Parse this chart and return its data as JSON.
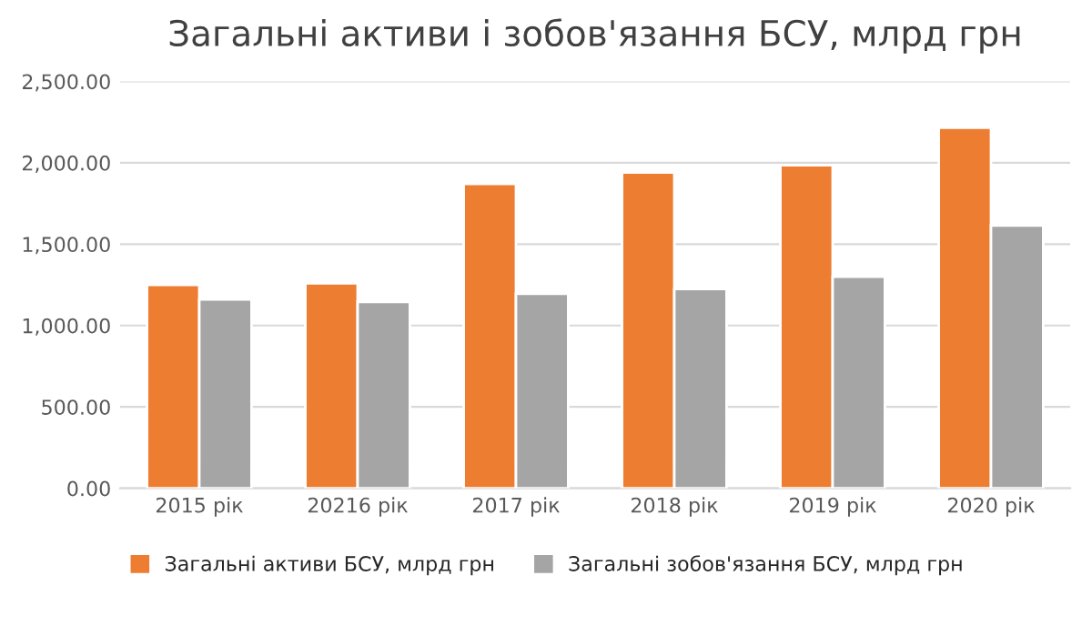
{
  "chart_data": {
    "type": "bar",
    "title": "Загальні активи і зобов'язання БСУ, млрд грн",
    "categories": [
      "2015 рік",
      "20216 рік",
      "2017 рік",
      "2018 рік",
      "2019 рік",
      "2020 рік"
    ],
    "series": [
      {
        "name": "Загальні активи БСУ, млрд грн",
        "color": "#ed7d31",
        "values": [
          1250,
          1260,
          1870,
          1940,
          1985,
          2215
        ]
      },
      {
        "name": "Загальні зобов'язання БСУ, млрд грн",
        "color": "#a5a5a5",
        "values": [
          1160,
          1145,
          1195,
          1225,
          1300,
          1615
        ]
      }
    ],
    "ylim": [
      0,
      2500
    ],
    "yticks": [
      {
        "value": 0,
        "label": "0.00"
      },
      {
        "value": 500,
        "label": "500.00"
      },
      {
        "value": 1000,
        "label": "1,000.00"
      },
      {
        "value": 1500,
        "label": "1,500.00"
      },
      {
        "value": 2000,
        "label": "2,000.00"
      },
      {
        "value": 2500,
        "label": "2,500.00"
      }
    ],
    "grid": "y",
    "legend": "bottom"
  }
}
